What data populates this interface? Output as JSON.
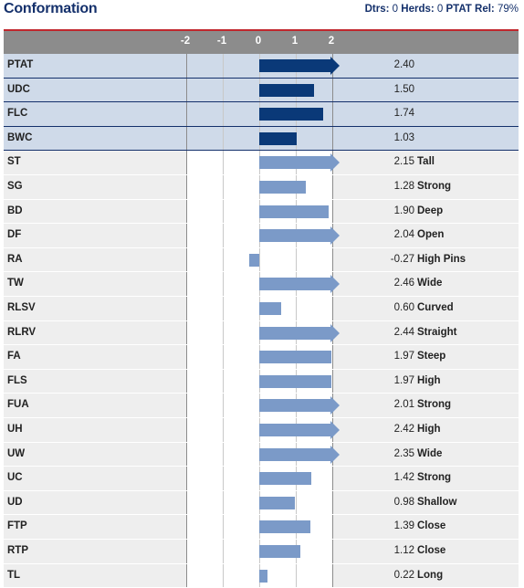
{
  "header": {
    "title": "Conformation",
    "dtrs_label": "Dtrs:",
    "dtrs_value": "0",
    "herds_label": "Herds:",
    "herds_value": "0",
    "rel_label": "PTAT Rel:",
    "rel_value": "79%"
  },
  "colors": {
    "title": "#14306b",
    "accent_line": "#c0272d",
    "header_bar": "#8c8c8c",
    "top_row_bg": "#cfdae9",
    "bar_dark": "#0a3978",
    "bar_light": "#7b9ac8"
  },
  "chart_data": {
    "type": "bar",
    "orientation": "horizontal",
    "ticks": [
      "-2",
      "-1",
      "0",
      "1",
      "2"
    ],
    "xlim": [
      -2,
      2
    ],
    "grid": true,
    "clipped_at_max": true,
    "categories": [
      "PTAT",
      "UDC",
      "FLC",
      "BWC",
      "ST",
      "SG",
      "BD",
      "DF",
      "RA",
      "TW",
      "RLSV",
      "RLRV",
      "FA",
      "FLS",
      "FUA",
      "UH",
      "UW",
      "UC",
      "UD",
      "FTP",
      "RTP",
      "TL"
    ],
    "values": [
      2.4,
      1.5,
      1.74,
      1.03,
      2.15,
      1.28,
      1.9,
      2.04,
      -0.27,
      2.46,
      0.6,
      2.44,
      1.97,
      1.97,
      2.01,
      2.42,
      2.35,
      1.42,
      0.98,
      1.39,
      1.12,
      0.22
    ],
    "value_labels": [
      "2.40",
      "1.50",
      "1.74",
      "1.03",
      "2.15",
      "1.28",
      "1.90",
      "2.04",
      "-0.27",
      "2.46",
      "0.60",
      "2.44",
      "1.97",
      "1.97",
      "2.01",
      "2.42",
      "2.35",
      "1.42",
      "0.98",
      "1.39",
      "1.12",
      "0.22"
    ],
    "descriptors": [
      "",
      "",
      "",
      "",
      "Tall",
      "Strong",
      "Deep",
      "Open",
      "High Pins",
      "Wide",
      "Curved",
      "Straight",
      "Steep",
      "High",
      "Strong",
      "High",
      "Wide",
      "Strong",
      "Shallow",
      "Close",
      "Close",
      "Long"
    ],
    "summary_trait_count": 4
  }
}
